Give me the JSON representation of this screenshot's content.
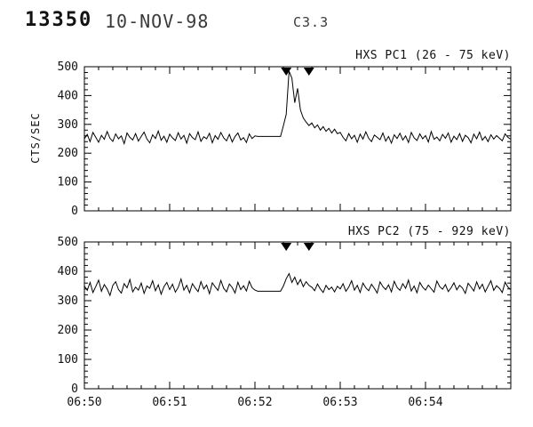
{
  "page": {
    "background": "#ffffff",
    "line_color": "#000000"
  },
  "header": {
    "event_id": "13350",
    "date": "10-NOV-98",
    "goes_class": "C3.3"
  },
  "chart_data": [
    {
      "type": "line",
      "title": "HXS PC1 (26 - 75 keV)",
      "ylabel": "CTS/SEC",
      "ylim": [
        0,
        500
      ],
      "yticks": [
        0,
        100,
        200,
        300,
        400,
        500
      ],
      "x_range_seconds": [
        0,
        300
      ],
      "x_start_seconds": 0,
      "x_step_seconds": 2,
      "xticks": [
        {
          "t": 0,
          "label": "06:50"
        },
        {
          "t": 60,
          "label": "06:51"
        },
        {
          "t": 120,
          "label": "06:52"
        },
        {
          "t": 180,
          "label": "06:53"
        },
        {
          "t": 240,
          "label": "06:54"
        }
      ],
      "show_x_tick_labels": false,
      "marker_times_seconds": [
        142,
        158
      ],
      "values": [
        250,
        265,
        240,
        272,
        255,
        238,
        262,
        248,
        275,
        252,
        241,
        267,
        250,
        260,
        233,
        270,
        255,
        246,
        268,
        242,
        258,
        273,
        249,
        236,
        264,
        251,
        277,
        245,
        259,
        238,
        266,
        253,
        244,
        271,
        249,
        262,
        235,
        268,
        254,
        247,
        274,
        241,
        257,
        250,
        269,
        236,
        261,
        248,
        272,
        253,
        243,
        265,
        239,
        258,
        270,
        246,
        254,
        237,
        267,
        251,
        260,
        258,
        258,
        258,
        258,
        258,
        258,
        258,
        258,
        258,
        295,
        335,
        485,
        460,
        375,
        425,
        350,
        322,
        308,
        296,
        305,
        288,
        298,
        280,
        292,
        276,
        286,
        270,
        283,
        268,
        272,
        255,
        243,
        268,
        250,
        262,
        238,
        266,
        249,
        274,
        252,
        240,
        263,
        255,
        247,
        270,
        242,
        258,
        235,
        264,
        251,
        269,
        246,
        260,
        237,
        272,
        253,
        244,
        267,
        250,
        261,
        239,
        275,
        248,
        256,
        243,
        265,
        252,
        270,
        238,
        259,
        247,
        268,
        241,
        262,
        254,
        236,
        266,
        250,
        273,
        245,
        258,
        240,
        264,
        249,
        261,
        252,
        243,
        267,
        255,
        248
      ]
    },
    {
      "type": "line",
      "title": "HXS PC2 (75 - 929 keV)",
      "ylabel": "",
      "ylim": [
        0,
        500
      ],
      "yticks": [
        0,
        100,
        200,
        300,
        400,
        500
      ],
      "x_range_seconds": [
        0,
        300
      ],
      "x_start_seconds": 0,
      "x_step_seconds": 2,
      "xticks": [
        {
          "t": 0,
          "label": "06:50"
        },
        {
          "t": 60,
          "label": "06:51"
        },
        {
          "t": 120,
          "label": "06:52"
        },
        {
          "t": 180,
          "label": "06:53"
        },
        {
          "t": 240,
          "label": "06:54"
        }
      ],
      "show_x_tick_labels": true,
      "marker_times_seconds": [
        142,
        158
      ],
      "values": [
        350,
        335,
        362,
        328,
        348,
        370,
        332,
        355,
        340,
        318,
        352,
        365,
        338,
        326,
        358,
        344,
        372,
        330,
        346,
        336,
        360,
        325,
        350,
        342,
        368,
        334,
        354,
        322,
        348,
        362,
        338,
        356,
        329,
        345,
        374,
        336,
        352,
        327,
        358,
        343,
        331,
        365,
        340,
        353,
        324,
        361,
        347,
        335,
        369,
        342,
        330,
        357,
        345,
        326,
        363,
        338,
        351,
        333,
        366,
        344,
        336,
        332,
        332,
        332,
        332,
        332,
        332,
        332,
        332,
        332,
        350,
        375,
        392,
        362,
        380,
        355,
        372,
        348,
        365,
        352,
        346,
        334,
        357,
        340,
        328,
        352,
        338,
        346,
        330,
        349,
        340,
        358,
        332,
        346,
        368,
        336,
        352,
        328,
        360,
        344,
        334,
        356,
        342,
        326,
        364,
        348,
        338,
        354,
        330,
        366,
        345,
        335,
        358,
        342,
        370,
        333,
        350,
        327,
        362,
        346,
        336,
        353,
        341,
        329,
        367,
        348,
        339,
        355,
        331,
        344,
        361,
        337,
        352,
        343,
        325,
        359,
        347,
        333,
        364,
        340,
        356,
        330,
        349,
        368,
        335,
        351,
        342,
        328,
        363,
        346,
        338
      ]
    }
  ]
}
